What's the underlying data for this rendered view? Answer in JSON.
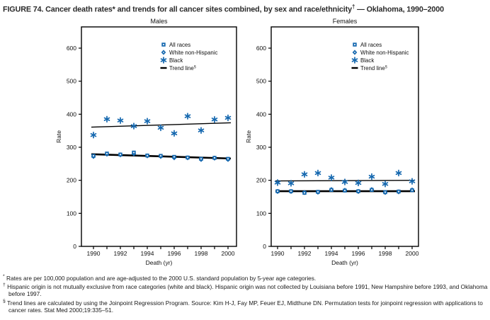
{
  "title": {
    "part1": "FIGURE 74. Cancer death rates* and trends for all cancer sites combined, by sex and race/ethnicity",
    "sup": "†",
    "part2": " — Oklahoma, 1990–2000"
  },
  "colors": {
    "marker_blue": "#1568af",
    "axis_black": "#000000",
    "title_color": "#2b2b2b"
  },
  "legend": {
    "items": [
      {
        "label": "All races",
        "marker": "square"
      },
      {
        "label": "White non-Hispanic",
        "marker": "diamond"
      },
      {
        "label": "Black",
        "marker": "asterisk"
      },
      {
        "label": "Trend line",
        "sup": "§",
        "marker": "line"
      }
    ]
  },
  "chart_data": [
    {
      "type": "scatter",
      "title": "Males",
      "xlabel": "Death (yr)",
      "ylabel": "Rate",
      "x": [
        1990,
        1991,
        1992,
        1993,
        1994,
        1995,
        1996,
        1997,
        1998,
        1999,
        2000
      ],
      "xticks_labeled": [
        1990,
        1992,
        1994,
        1996,
        1998,
        2000
      ],
      "yticks": [
        0,
        100,
        200,
        300,
        400,
        500,
        600
      ],
      "ylim": [
        0,
        664
      ],
      "grid": false,
      "legend_position": "upper-center",
      "series": [
        {
          "name": "All races",
          "marker": "square",
          "values": [
            274,
            281,
            278,
            284,
            275,
            274,
            271,
            269,
            265,
            268,
            265
          ]
        },
        {
          "name": "White non-Hispanic",
          "marker": "diamond",
          "values": [
            272,
            279,
            277,
            280,
            274,
            272,
            268,
            268,
            263,
            267,
            263
          ]
        },
        {
          "name": "Black",
          "marker": "asterisk",
          "values": [
            337,
            385,
            381,
            364,
            379,
            359,
            342,
            394,
            351,
            384,
            389
          ]
        }
      ],
      "trend_lines": [
        {
          "name": "All races / White non-Hispanic trend",
          "start": 279,
          "end": 266,
          "thick": true
        },
        {
          "name": "Black trend",
          "start": 361,
          "end": 374,
          "thick": false
        }
      ]
    },
    {
      "type": "scatter",
      "title": "Females",
      "xlabel": "Death (yr)",
      "ylabel": "Rate",
      "x": [
        1990,
        1991,
        1992,
        1993,
        1994,
        1995,
        1996,
        1997,
        1998,
        1999,
        2000
      ],
      "xticks_labeled": [
        1990,
        1992,
        1994,
        1996,
        1998,
        2000
      ],
      "yticks": [
        0,
        100,
        200,
        300,
        400,
        500,
        600
      ],
      "ylim": [
        0,
        664
      ],
      "grid": false,
      "legend_position": "upper-center",
      "series": [
        {
          "name": "All races",
          "marker": "square",
          "values": [
            167,
            167,
            162,
            165,
            171,
            169,
            167,
            171,
            164,
            166,
            170
          ]
        },
        {
          "name": "White non-Hispanic",
          "marker": "diamond",
          "values": [
            166,
            166,
            163,
            164,
            172,
            170,
            166,
            172,
            163,
            165,
            171
          ]
        },
        {
          "name": "Black",
          "marker": "asterisk",
          "values": [
            193,
            191,
            218,
            222,
            208,
            195,
            192,
            211,
            189,
            222,
            197
          ]
        }
      ],
      "trend_lines": [
        {
          "name": "All races / White non-Hispanic trend",
          "start": 167,
          "end": 167,
          "thick": true
        },
        {
          "name": "Black trend",
          "start": 198,
          "end": 200,
          "thick": false
        }
      ]
    }
  ],
  "footnotes": [
    {
      "marker": "*",
      "text": "Rates are per 100,000 population and are age-adjusted to the 2000 U.S. standard population by 5-year age categories."
    },
    {
      "marker": "†",
      "text": "Hispanic origin is not mutually exclusive from race categories (white and black). Hispanic origin was not collected by Louisiana before 1991, New Hampshire before 1993, and Oklahoma before 1997."
    },
    {
      "marker": "§",
      "text": "Trend lines are calculated by using the Joinpoint Regression Program. Source: Kim H-J, Fay MP, Feuer EJ, Midthune DN. Permutation tests for joinpoint regression with applications to cancer rates. Stat Med 2000;19:335–51."
    }
  ]
}
